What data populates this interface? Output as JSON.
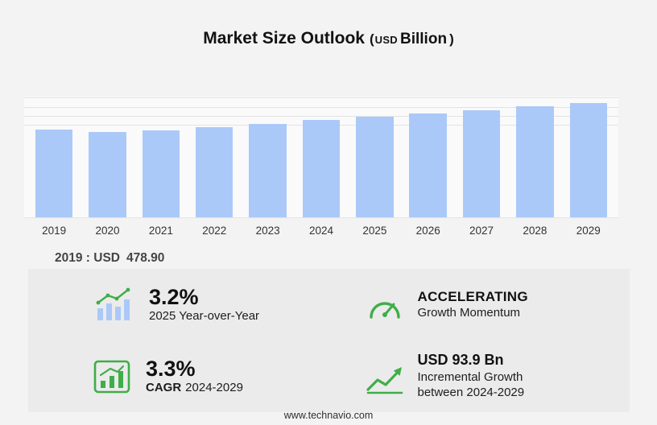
{
  "title": {
    "main": "Market Size Outlook",
    "paren_open": "(",
    "currency": "USD",
    "unit": "Billion",
    "paren_close": ")"
  },
  "chart_data": {
    "type": "bar",
    "title": "Market Size Outlook (USD Billion)",
    "categories": [
      "2019",
      "2020",
      "2021",
      "2022",
      "2023",
      "2024",
      "2025",
      "2026",
      "2027",
      "2028",
      "2029"
    ],
    "values": [
      478.9,
      466.0,
      476.5,
      493.0,
      511.0,
      532.6,
      549.6,
      567.8,
      586.5,
      605.9,
      626.5
    ],
    "ylim": [
      0,
      660
    ],
    "gridlines": [
      500,
      550,
      600,
      650
    ],
    "bar_color": "#abc9f8",
    "xlabel": "",
    "ylabel": "",
    "legend_position": "none",
    "grid": "horizontal-faint"
  },
  "annotation": {
    "label": "2019 : USD",
    "value": "478.90"
  },
  "stats": {
    "yoy": {
      "headline": "3.2%",
      "sub": "2025 Year-over-Year",
      "icon": "bar-growth-icon"
    },
    "momentum": {
      "headline": "ACCELERATING",
      "sub": "Growth Momentum",
      "icon": "speedometer-icon"
    },
    "cagr": {
      "headline": "3.3%",
      "sub_bold": "CAGR",
      "sub": "2024-2029",
      "icon": "cagr-chart-icon"
    },
    "incremental": {
      "headline": "USD 93.9 Bn",
      "sub_line1": "Incremental Growth",
      "sub_line2": "between 2024-2029",
      "icon": "growth-arrow-icon"
    }
  },
  "footer": {
    "url": "www.technavio.com"
  },
  "colors": {
    "bar": "#abc9f8",
    "accent_green": "#3fae49",
    "panel_bg": "#ebebeb",
    "page_bg": "#f3f3f3"
  }
}
